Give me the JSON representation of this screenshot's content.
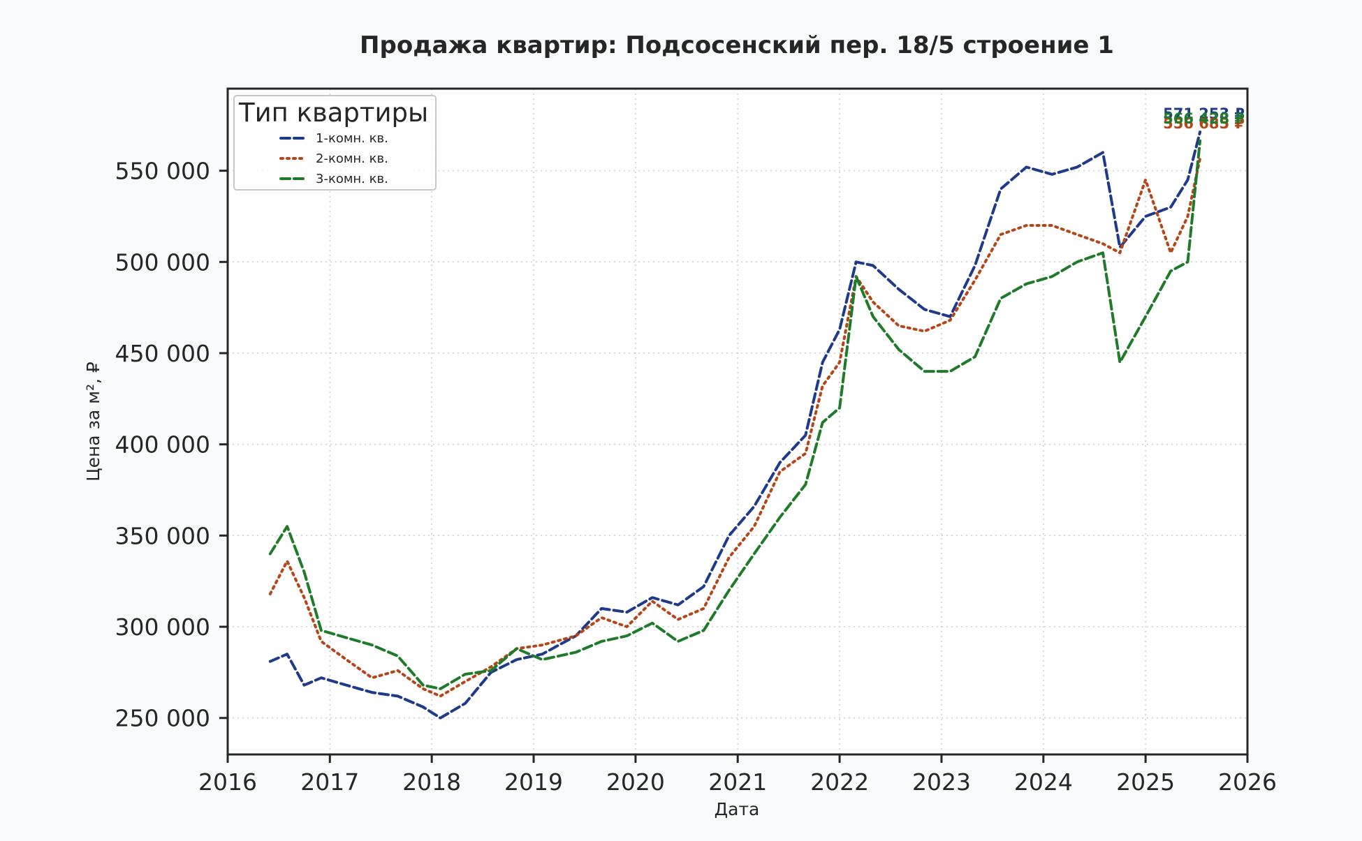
{
  "chart_data": {
    "type": "line",
    "title": "Продажа квартир: Подсосенский пер. 18/5 строение 1",
    "xlabel": "Дата",
    "ylabel": "Цена за м², ₽",
    "x_ticks": [
      "2016",
      "2017",
      "2018",
      "2019",
      "2020",
      "2021",
      "2022",
      "2023",
      "2024",
      "2025",
      "2026"
    ],
    "y_ticks": [
      "250 000",
      "300 000",
      "350 000",
      "400 000",
      "450 000",
      "500 000",
      "550 000"
    ],
    "xlim": [
      "2016-01-01",
      "2026-01-01"
    ],
    "ylim": [
      230000,
      595000
    ],
    "grid": true,
    "legend": {
      "title": "Тип квартиры",
      "position": "top-left"
    },
    "series": [
      {
        "name": "1-комн. кв.",
        "color": "#1f3a8a",
        "style": "dashed",
        "end_label": "571 253 ₽",
        "points": [
          [
            "2016-06-01",
            281000
          ],
          [
            "2016-08-01",
            285000
          ],
          [
            "2016-10-01",
            268000
          ],
          [
            "2016-12-01",
            272000
          ],
          [
            "2017-03-01",
            268000
          ],
          [
            "2017-06-01",
            264000
          ],
          [
            "2017-09-01",
            262000
          ],
          [
            "2017-12-01",
            256000
          ],
          [
            "2018-02-01",
            250000
          ],
          [
            "2018-05-01",
            258000
          ],
          [
            "2018-08-01",
            275000
          ],
          [
            "2018-11-01",
            282000
          ],
          [
            "2019-02-01",
            285000
          ],
          [
            "2019-06-01",
            295000
          ],
          [
            "2019-09-01",
            310000
          ],
          [
            "2019-12-01",
            308000
          ],
          [
            "2020-03-01",
            316000
          ],
          [
            "2020-06-01",
            312000
          ],
          [
            "2020-09-01",
            322000
          ],
          [
            "2020-12-01",
            350000
          ],
          [
            "2021-03-01",
            366000
          ],
          [
            "2021-06-01",
            390000
          ],
          [
            "2021-09-01",
            405000
          ],
          [
            "2021-11-01",
            445000
          ],
          [
            "2022-01-01",
            463000
          ],
          [
            "2022-03-01",
            500000
          ],
          [
            "2022-05-01",
            498000
          ],
          [
            "2022-08-01",
            485000
          ],
          [
            "2022-11-01",
            474000
          ],
          [
            "2023-02-01",
            470000
          ],
          [
            "2023-05-01",
            498000
          ],
          [
            "2023-08-01",
            540000
          ],
          [
            "2023-11-01",
            552000
          ],
          [
            "2024-02-01",
            548000
          ],
          [
            "2024-05-01",
            552000
          ],
          [
            "2024-08-01",
            560000
          ],
          [
            "2024-10-01",
            508000
          ],
          [
            "2025-01-01",
            525000
          ],
          [
            "2025-04-01",
            530000
          ],
          [
            "2025-06-01",
            545000
          ],
          [
            "2025-07-15",
            571253
          ]
        ]
      },
      {
        "name": "2-комн. кв.",
        "color": "#b5461a",
        "style": "dotted",
        "end_label": "556 685 ₽",
        "points": [
          [
            "2016-06-01",
            318000
          ],
          [
            "2016-08-01",
            336000
          ],
          [
            "2016-10-01",
            316000
          ],
          [
            "2016-12-01",
            292000
          ],
          [
            "2017-03-01",
            282000
          ],
          [
            "2017-06-01",
            272000
          ],
          [
            "2017-09-01",
            276000
          ],
          [
            "2017-12-01",
            266000
          ],
          [
            "2018-02-01",
            262000
          ],
          [
            "2018-05-01",
            270000
          ],
          [
            "2018-08-01",
            278000
          ],
          [
            "2018-11-01",
            288000
          ],
          [
            "2019-02-01",
            290000
          ],
          [
            "2019-06-01",
            295000
          ],
          [
            "2019-09-01",
            305000
          ],
          [
            "2019-12-01",
            300000
          ],
          [
            "2020-03-01",
            314000
          ],
          [
            "2020-06-01",
            304000
          ],
          [
            "2020-09-01",
            310000
          ],
          [
            "2020-12-01",
            338000
          ],
          [
            "2021-03-01",
            355000
          ],
          [
            "2021-06-01",
            385000
          ],
          [
            "2021-09-01",
            395000
          ],
          [
            "2021-11-01",
            432000
          ],
          [
            "2022-01-01",
            445000
          ],
          [
            "2022-03-01",
            492000
          ],
          [
            "2022-05-01",
            478000
          ],
          [
            "2022-08-01",
            465000
          ],
          [
            "2022-11-01",
            462000
          ],
          [
            "2023-02-01",
            468000
          ],
          [
            "2023-05-01",
            490000
          ],
          [
            "2023-08-01",
            515000
          ],
          [
            "2023-11-01",
            520000
          ],
          [
            "2024-02-01",
            520000
          ],
          [
            "2024-05-01",
            515000
          ],
          [
            "2024-08-01",
            510000
          ],
          [
            "2024-10-01",
            505000
          ],
          [
            "2025-01-01",
            545000
          ],
          [
            "2025-04-01",
            505000
          ],
          [
            "2025-06-01",
            525000
          ],
          [
            "2025-07-15",
            556685
          ]
        ]
      },
      {
        "name": "3-комн. кв.",
        "color": "#1f7a2a",
        "style": "dashed",
        "end_label": "566 428 ₽",
        "points": [
          [
            "2016-06-01",
            340000
          ],
          [
            "2016-08-01",
            355000
          ],
          [
            "2016-10-01",
            330000
          ],
          [
            "2016-12-01",
            298000
          ],
          [
            "2017-03-01",
            294000
          ],
          [
            "2017-06-01",
            290000
          ],
          [
            "2017-09-01",
            284000
          ],
          [
            "2017-12-01",
            268000
          ],
          [
            "2018-02-01",
            266000
          ],
          [
            "2018-05-01",
            274000
          ],
          [
            "2018-08-01",
            276000
          ],
          [
            "2018-11-01",
            288000
          ],
          [
            "2019-02-01",
            282000
          ],
          [
            "2019-06-01",
            286000
          ],
          [
            "2019-09-01",
            292000
          ],
          [
            "2019-12-01",
            295000
          ],
          [
            "2020-03-01",
            302000
          ],
          [
            "2020-06-01",
            292000
          ],
          [
            "2020-09-01",
            298000
          ],
          [
            "2020-12-01",
            320000
          ],
          [
            "2021-03-01",
            340000
          ],
          [
            "2021-06-01",
            360000
          ],
          [
            "2021-09-01",
            378000
          ],
          [
            "2021-11-01",
            412000
          ],
          [
            "2022-01-01",
            420000
          ],
          [
            "2022-03-01",
            492000
          ],
          [
            "2022-05-01",
            470000
          ],
          [
            "2022-08-01",
            452000
          ],
          [
            "2022-11-01",
            440000
          ],
          [
            "2023-02-01",
            440000
          ],
          [
            "2023-05-01",
            448000
          ],
          [
            "2023-08-01",
            480000
          ],
          [
            "2023-11-01",
            488000
          ],
          [
            "2024-02-01",
            492000
          ],
          [
            "2024-05-01",
            500000
          ],
          [
            "2024-08-01",
            505000
          ],
          [
            "2024-10-01",
            445000
          ],
          [
            "2025-01-01",
            470000
          ],
          [
            "2025-04-01",
            495000
          ],
          [
            "2025-06-01",
            500000
          ],
          [
            "2025-07-15",
            566428
          ]
        ]
      }
    ]
  }
}
